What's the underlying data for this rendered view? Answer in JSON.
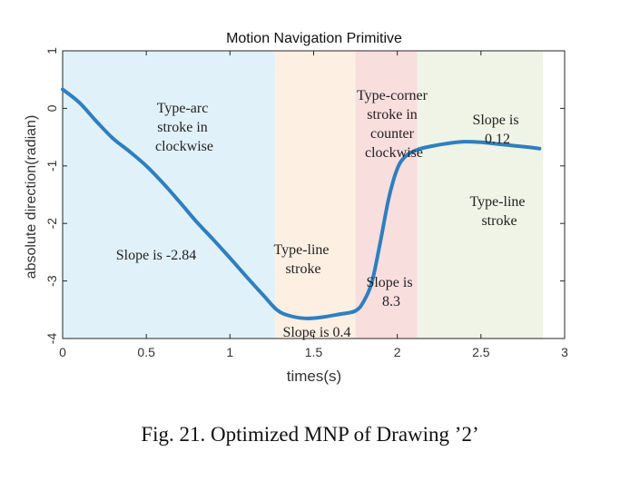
{
  "chart_data": {
    "type": "line",
    "title": "Motion Navigation Primitive",
    "xlabel": "times(s)",
    "ylabel": "absolute direction(radian)",
    "xlim": [
      0,
      3
    ],
    "ylim": [
      -4,
      1
    ],
    "xticks": [
      "0",
      "0.5",
      "1",
      "1.5",
      "2",
      "2.5",
      "3"
    ],
    "xtick_values": [
      0,
      0.5,
      1,
      1.5,
      2,
      2.5,
      3
    ],
    "yticks": [
      "1",
      "0",
      "-1",
      "-2",
      "-3",
      "-4"
    ],
    "ytick_values": [
      1,
      0,
      -1,
      -2,
      -3,
      -4
    ],
    "grid": false,
    "series": [
      {
        "color": "#2e7fc0",
        "x": [
          0,
          0.1,
          0.2,
          0.3,
          0.4,
          0.5,
          0.6,
          0.7,
          0.8,
          0.9,
          1.0,
          1.1,
          1.2,
          1.28,
          1.35,
          1.45,
          1.55,
          1.65,
          1.75,
          1.8,
          1.85,
          1.9,
          1.95,
          2.0,
          2.05,
          2.12,
          2.2,
          2.3,
          2.4,
          2.5,
          2.6,
          2.7,
          2.8,
          2.85
        ],
        "y": [
          0.33,
          0.1,
          -0.22,
          -0.52,
          -0.75,
          -1.0,
          -1.3,
          -1.63,
          -1.97,
          -2.28,
          -2.6,
          -2.93,
          -3.25,
          -3.5,
          -3.6,
          -3.65,
          -3.63,
          -3.58,
          -3.52,
          -3.35,
          -3.0,
          -2.3,
          -1.55,
          -1.05,
          -0.83,
          -0.72,
          -0.66,
          -0.61,
          -0.58,
          -0.59,
          -0.62,
          -0.65,
          -0.68,
          -0.7
        ]
      }
    ],
    "regions": [
      {
        "x0": 0,
        "x1": 1.27,
        "color": "#e1f1f9"
      },
      {
        "x0": 1.27,
        "x1": 1.75,
        "color": "#fdf0e3"
      },
      {
        "x0": 1.75,
        "x1": 2.12,
        "color": "#f9dede"
      },
      {
        "x0": 2.12,
        "x1": 2.87,
        "color": "#eff4e6"
      }
    ],
    "annotations": {
      "arc_type": [
        "Type-arc",
        "stroke in",
        "clockwise"
      ],
      "arc_slope": "Slope is -2.84",
      "line1_type": [
        "Type-line",
        "stroke"
      ],
      "line1_slope": "Slope is 0.4",
      "corner_type": [
        "Type-corner",
        "stroke in",
        "counter",
        "clockwise"
      ],
      "corner_slope": [
        "Slope is",
        "8.3"
      ],
      "line2_slope": [
        "Slope is",
        "0.12"
      ],
      "line2_type": [
        "Type-line",
        "stroke"
      ]
    }
  },
  "caption": "Fig. 21.  Optimized MNP of Drawing ’2’"
}
